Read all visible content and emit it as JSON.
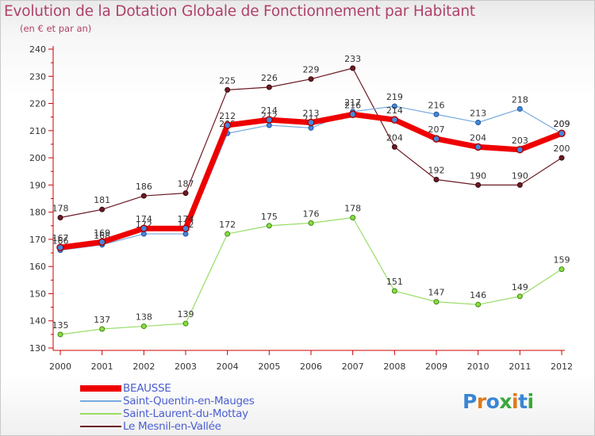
{
  "title": "Evolution de la Dotation Globale de Fonctionnement par Habitant",
  "subtitle": "(en € et par an)",
  "logo_text": "Proxiti",
  "colors": {
    "title": "#b0416a",
    "axis": "#cc0000",
    "legend_text": "#4a5fd0"
  },
  "chart_data": {
    "type": "line",
    "title": "Evolution de la Dotation Globale de Fonctionnement par Habitant",
    "subtitle": "(en € et par an)",
    "x": [
      "2000",
      "2001",
      "2002",
      "2003",
      "2004",
      "2005",
      "2006",
      "2007",
      "2008",
      "2009",
      "2010",
      "2011",
      "2012"
    ],
    "ylim": [
      130,
      240
    ],
    "yticks": [
      "130",
      "140",
      "150",
      "160",
      "170",
      "180",
      "190",
      "200",
      "210",
      "220",
      "230",
      "240"
    ],
    "grid": false,
    "legend_position": "bottom-left",
    "series": [
      {
        "name": "Le Mesnil-en-Vallée",
        "color": "#6b1a24",
        "values": [
          178,
          181,
          186,
          187,
          225,
          226,
          229,
          233,
          204,
          192,
          190,
          190,
          200
        ],
        "labels": [
          "178",
          "181",
          "186",
          "187",
          "225",
          "226",
          "229",
          "233",
          "204",
          "192",
          "190",
          "190",
          "200"
        ],
        "width": 1.2,
        "marker": "#6b1a24",
        "marker_stroke": "#3a0a10"
      },
      {
        "name": "Saint-Laurent-du-Mottay",
        "color": "#99dd66",
        "values": [
          135,
          137,
          138,
          139,
          172,
          175,
          176,
          178,
          151,
          147,
          146,
          149,
          159
        ],
        "labels": [
          "135",
          "137",
          "138",
          "139",
          "172",
          "175",
          "176",
          "178",
          "151",
          "147",
          "146",
          "149",
          "159"
        ],
        "width": 1.2,
        "marker": "#88dd44",
        "marker_stroke": "#448811"
      },
      {
        "name": "Saint-Quentin-en-Mauges",
        "color": "#77aadd",
        "values": [
          166,
          168,
          172,
          172,
          209,
          212,
          211,
          217,
          219,
          216,
          213,
          218,
          209
        ],
        "labels": [
          "166",
          "168",
          "172",
          "172",
          "209",
          "212",
          "211",
          "217",
          "219",
          "216",
          "213",
          "218",
          "209"
        ],
        "width": 1.2,
        "marker": "#4488dd",
        "marker_stroke": "#225599"
      },
      {
        "name": "BEAUSSE",
        "color": "#ee0000",
        "values": [
          167,
          169,
          174,
          174,
          212,
          214,
          213,
          216,
          214,
          207,
          204,
          203,
          209
        ],
        "labels": [
          "167",
          "169",
          "174",
          "174",
          "212",
          "214",
          "213",
          "216",
          "214",
          "207",
          "204",
          "203",
          "209"
        ],
        "width": 7,
        "marker": "#4488dd",
        "marker_stroke": "#aa0000"
      }
    ]
  },
  "legend": [
    {
      "label": "BEAUSSE",
      "color": "#ee0000",
      "thickness": 8
    },
    {
      "label": "Saint-Quentin-en-Mauges",
      "color": "#77aadd",
      "thickness": 2
    },
    {
      "label": "Saint-Laurent-du-Mottay",
      "color": "#99dd66",
      "thickness": 2
    },
    {
      "label": "Le Mesnil-en-Vallée",
      "color": "#6b1a24",
      "thickness": 2
    }
  ]
}
